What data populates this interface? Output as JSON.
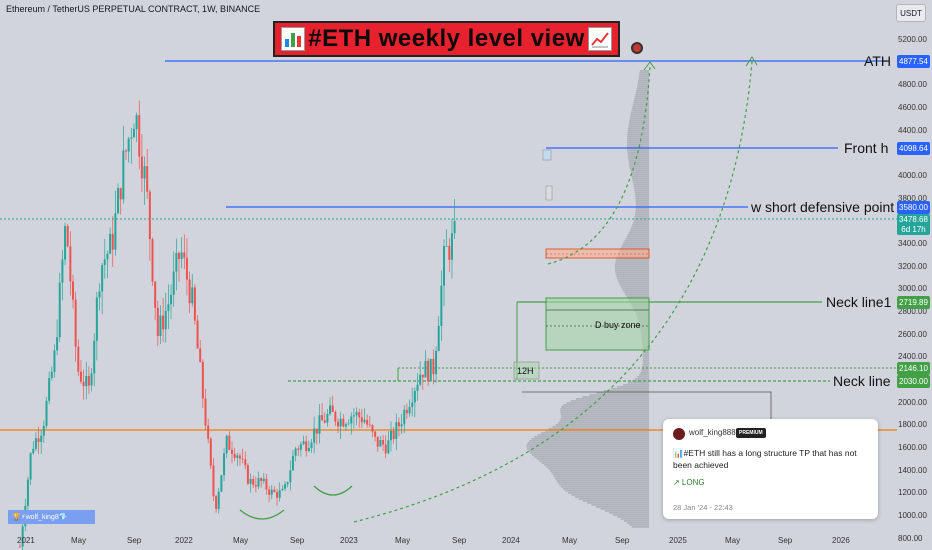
{
  "header": {
    "symbol_line": "Ethereum / TetherUS PERPETUAL CONTRACT, 1W, BINANCE",
    "currency": "USDT"
  },
  "title": {
    "text": "#ETH weekly level view"
  },
  "levels": {
    "ath": {
      "label": "ATH",
      "price": "4877.54",
      "color": "#2962ff"
    },
    "front": {
      "label": "Front h",
      "price": "4098.64",
      "color": "#2962ff"
    },
    "short": {
      "label": "w short defensive point",
      "price": "3580.00",
      "color": "#2962ff"
    },
    "current": {
      "price": "3478.68",
      "countdown": "6d 17h",
      "color": "#26a69a"
    },
    "neck1": {
      "label": "Neck line1",
      "price": "2719.89",
      "color": "#43a047"
    },
    "upper_neck": {
      "price": "2146.10",
      "color": "#43a047"
    },
    "neck": {
      "label": "Neck line",
      "price": "2030.00",
      "color": "#43a047"
    },
    "support_color": "#f57c00"
  },
  "zones": {
    "buy_zone": "D buy zone",
    "h12": "12H"
  },
  "price_axis": [
    "5200.00",
    "5000.00",
    "4800.00",
    "4600.00",
    "4400.00",
    "4200.00",
    "4000.00",
    "3800.00",
    "3600.00",
    "3400.00",
    "3200.00",
    "3000.00",
    "2800.00",
    "2600.00",
    "2400.00",
    "2200.00",
    "2000.00",
    "1800.00",
    "1600.00",
    "1400.00",
    "1200.00",
    "1000.00",
    "800.00"
  ],
  "time_axis": [
    "2021",
    "May",
    "Sep",
    "2022",
    "May",
    "Sep",
    "2023",
    "May",
    "Sep",
    "2024",
    "May",
    "Sep",
    "2025",
    "May",
    "Sep",
    "2026"
  ],
  "watermark": "🏆⚡wolf_king8💎",
  "idea_card": {
    "user": "wolf_king888",
    "badge": "PREMIUM",
    "message": "📊#ETH still has a long structure TP that has not been achieved",
    "direction": "↗ LONG",
    "date": "28 Jan '24 - 22:43"
  },
  "chart_data": {
    "type": "candlestick",
    "title": "#ETH weekly level view",
    "symbol": "ETHUSDT",
    "timeframe": "1W",
    "ylim": [
      760,
      5300
    ],
    "x_range": [
      "2021-01",
      "2026-03"
    ],
    "colors": {
      "up": "#26a69a",
      "down": "#ef5350"
    },
    "anchors": [
      [
        "2021-01",
        730
      ],
      [
        "2021-02",
        1600
      ],
      [
        "2021-03",
        1800
      ],
      [
        "2021-04",
        2400
      ],
      [
        "2021-05",
        3600
      ],
      [
        "2021-06",
        2300
      ],
      [
        "2021-07",
        2100
      ],
      [
        "2021-08",
        3200
      ],
      [
        "2021-09",
        3400
      ],
      [
        "2021-10",
        4100
      ],
      [
        "2021-11",
        4600
      ],
      [
        "2021-12",
        3900
      ],
      [
        "2022-01",
        2600
      ],
      [
        "2022-02",
        2900
      ],
      [
        "2022-03",
        3350
      ],
      [
        "2022-04",
        2900
      ],
      [
        "2022-05",
        2000
      ],
      [
        "2022-06",
        1050
      ],
      [
        "2022-07",
        1650
      ],
      [
        "2022-08",
        1550
      ],
      [
        "2022-09",
        1300
      ],
      [
        "2022-10",
        1300
      ],
      [
        "2022-11",
        1200
      ],
      [
        "2022-12",
        1200
      ],
      [
        "2023-01",
        1600
      ],
      [
        "2023-02",
        1650
      ],
      [
        "2023-03",
        1800
      ],
      [
        "2023-04",
        1900
      ],
      [
        "2023-05",
        1850
      ],
      [
        "2023-06",
        1900
      ],
      [
        "2023-07",
        1860
      ],
      [
        "2023-08",
        1650
      ],
      [
        "2023-09",
        1620
      ],
      [
        "2023-10",
        1800
      ],
      [
        "2023-11",
        2050
      ],
      [
        "2023-12",
        2300
      ],
      [
        "2024-01",
        2280
      ],
      [
        "2024-02",
        3300
      ],
      [
        "2024-03",
        3480
      ]
    ]
  }
}
